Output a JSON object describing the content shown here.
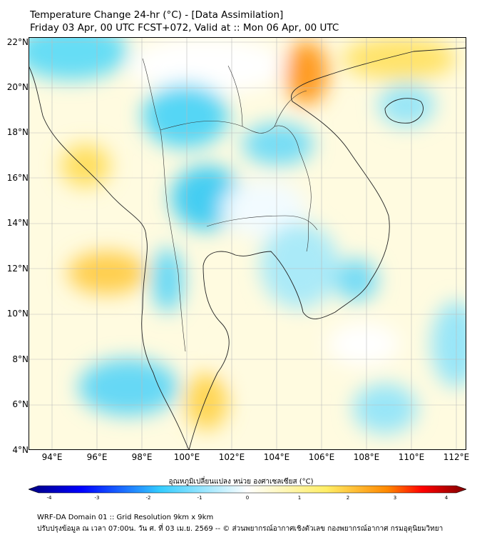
{
  "header": {
    "title_line1": "Temperature Change 24-hr (°C) - [Data Assimilation]",
    "title_line2": "Friday 03 Apr, 00 UTC FCST+072, Valid at :: Mon 06 Apr, 00 UTC"
  },
  "map": {
    "lat_labels": [
      "22°N",
      "20°N",
      "18°N",
      "16°N",
      "14°N",
      "12°N",
      "10°N",
      "8°N",
      "6°N",
      "4°N"
    ],
    "lon_labels": [
      "94°E",
      "96°E",
      "98°E",
      "100°E",
      "102°E",
      "104°E",
      "106°E",
      "108°E",
      "110°E",
      "112°E"
    ],
    "lat_range": [
      4,
      22
    ],
    "lon_range": [
      93,
      112.5
    ],
    "grid": true
  },
  "colorbar": {
    "title": "อุณหภูมิเปลี่ยนแปลง หน่วย องศาเซลเซียส (°C)",
    "range": [
      -4,
      4
    ],
    "ticks": [
      "-4",
      "-3",
      "-2",
      "-1",
      "0",
      "1",
      "2",
      "3",
      "4"
    ],
    "colors": {
      "darkblue": "#00007f",
      "blue": "#0000ff",
      "cyan": "#33ccff",
      "white": "#ffffff",
      "yellow": "#ffee66",
      "orange": "#ff8800",
      "red": "#ff0000",
      "darkred": "#7f0000"
    }
  },
  "footer": {
    "line1": "WRF-DA Domain 01 :: Grid Resolution 9km x 9km",
    "line2": "ปรับปรุงข้อมูล ณ เวลา 07:00น. วัน ศ. ที่ 03 เม.ย. 2569 -- © ส่วนพยากรณ์อากาศเชิงตัวเลข กองพยากรณ์อากาศ กรมอุตุนิยมวิทยา"
  }
}
